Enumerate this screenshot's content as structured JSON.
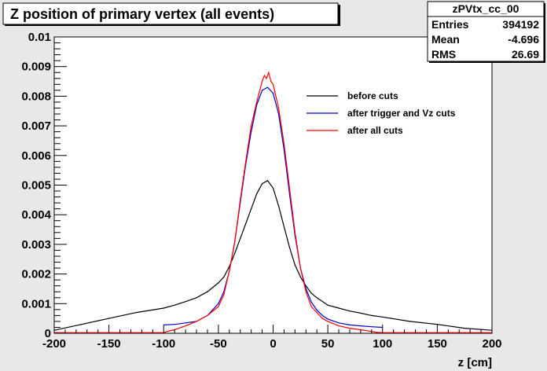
{
  "title": "Z position of primary vertex (all events)",
  "stats": {
    "name": "zPVtx_cc_00",
    "rows": [
      {
        "label": "Entries",
        "value": "394192"
      },
      {
        "label": "Mean",
        "value": "-4.696"
      },
      {
        "label": "RMS",
        "value": "26.69"
      }
    ]
  },
  "colors": {
    "background": "#e8e8e8",
    "before": "#000000",
    "trigger": "#0000cc",
    "all": "#ff0000"
  },
  "chart_data": {
    "type": "line",
    "title": "Z position of primary vertex (all events)",
    "xlabel": "z [cm]",
    "ylabel": "",
    "xlim": [
      -200,
      200
    ],
    "ylim": [
      0,
      0.01
    ],
    "xticks": [
      -200,
      -150,
      -100,
      -50,
      0,
      50,
      100,
      150,
      200
    ],
    "yticks": [
      0,
      0.001,
      0.002,
      0.003,
      0.004,
      0.005,
      0.006,
      0.007,
      0.008,
      0.009,
      0.01
    ],
    "ytick_labels": [
      "0",
      "0.001",
      "0.002",
      "0.003",
      "0.004",
      "0.005",
      "0.006",
      "0.007",
      "0.008",
      "0.009",
      "0.01"
    ],
    "grid": false,
    "legend_position": "top-right",
    "series": [
      {
        "name": "before cuts",
        "color": "#000000",
        "x": [
          -200,
          -175,
          -150,
          -125,
          -100,
          -90,
          -80,
          -70,
          -60,
          -50,
          -45,
          -40,
          -35,
          -30,
          -25,
          -20,
          -15,
          -10,
          -5,
          0,
          5,
          10,
          15,
          20,
          25,
          30,
          35,
          40,
          50,
          60,
          70,
          80,
          90,
          100,
          125,
          150,
          175,
          200
        ],
        "y": [
          0.0001,
          0.0003,
          0.0005,
          0.0007,
          0.00085,
          0.00095,
          0.00107,
          0.0012,
          0.0014,
          0.0017,
          0.0019,
          0.00225,
          0.0027,
          0.0032,
          0.0037,
          0.0042,
          0.0047,
          0.00505,
          0.00515,
          0.0049,
          0.0043,
          0.0036,
          0.0029,
          0.0023,
          0.0019,
          0.0016,
          0.00135,
          0.0012,
          0.00095,
          0.00085,
          0.00075,
          0.00068,
          0.0006,
          0.00055,
          0.0004,
          0.0003,
          0.00017,
          0.0001
        ]
      },
      {
        "name": "after trigger and Vz cuts",
        "color": "#0000cc",
        "x": [
          -100,
          -90,
          -80,
          -70,
          -60,
          -50,
          -45,
          -40,
          -35,
          -30,
          -25,
          -20,
          -15,
          -10,
          -5,
          0,
          5,
          10,
          15,
          20,
          25,
          30,
          35,
          40,
          45,
          50,
          60,
          70,
          80,
          90,
          100
        ],
        "y": [
          0.00028,
          0.0003,
          0.00035,
          0.0004,
          0.0006,
          0.001,
          0.0014,
          0.0021,
          0.0031,
          0.0044,
          0.0057,
          0.0068,
          0.0077,
          0.0082,
          0.0083,
          0.0081,
          0.0074,
          0.0062,
          0.0047,
          0.0033,
          0.0022,
          0.0015,
          0.00105,
          0.00078,
          0.0006,
          0.00048,
          0.00035,
          0.00028,
          0.00025,
          0.00022,
          0.0002
        ]
      },
      {
        "name": "after all cuts",
        "color": "#ff0000",
        "x": [
          -200,
          -100,
          -95,
          -90,
          -80,
          -70,
          -60,
          -50,
          -45,
          -40,
          -35,
          -30,
          -25,
          -20,
          -15,
          -10,
          -8,
          -6,
          -4,
          -2,
          0,
          5,
          10,
          15,
          20,
          25,
          30,
          35,
          40,
          45,
          50,
          60,
          70,
          80,
          90,
          95,
          100,
          200
        ],
        "y": [
          2e-05,
          2e-05,
          8e-05,
          0.00012,
          0.00025,
          0.0004,
          0.0006,
          0.0009,
          0.0013,
          0.0021,
          0.0031,
          0.0045,
          0.0058,
          0.007,
          0.0078,
          0.0085,
          0.0087,
          0.0086,
          0.0088,
          0.0085,
          0.0084,
          0.0076,
          0.0064,
          0.0049,
          0.0034,
          0.0022,
          0.0014,
          0.0009,
          0.0007,
          0.0005,
          0.0004,
          0.00025,
          0.00017,
          0.00012,
          6e-05,
          3e-05,
          2e-05,
          2e-05
        ]
      }
    ]
  }
}
